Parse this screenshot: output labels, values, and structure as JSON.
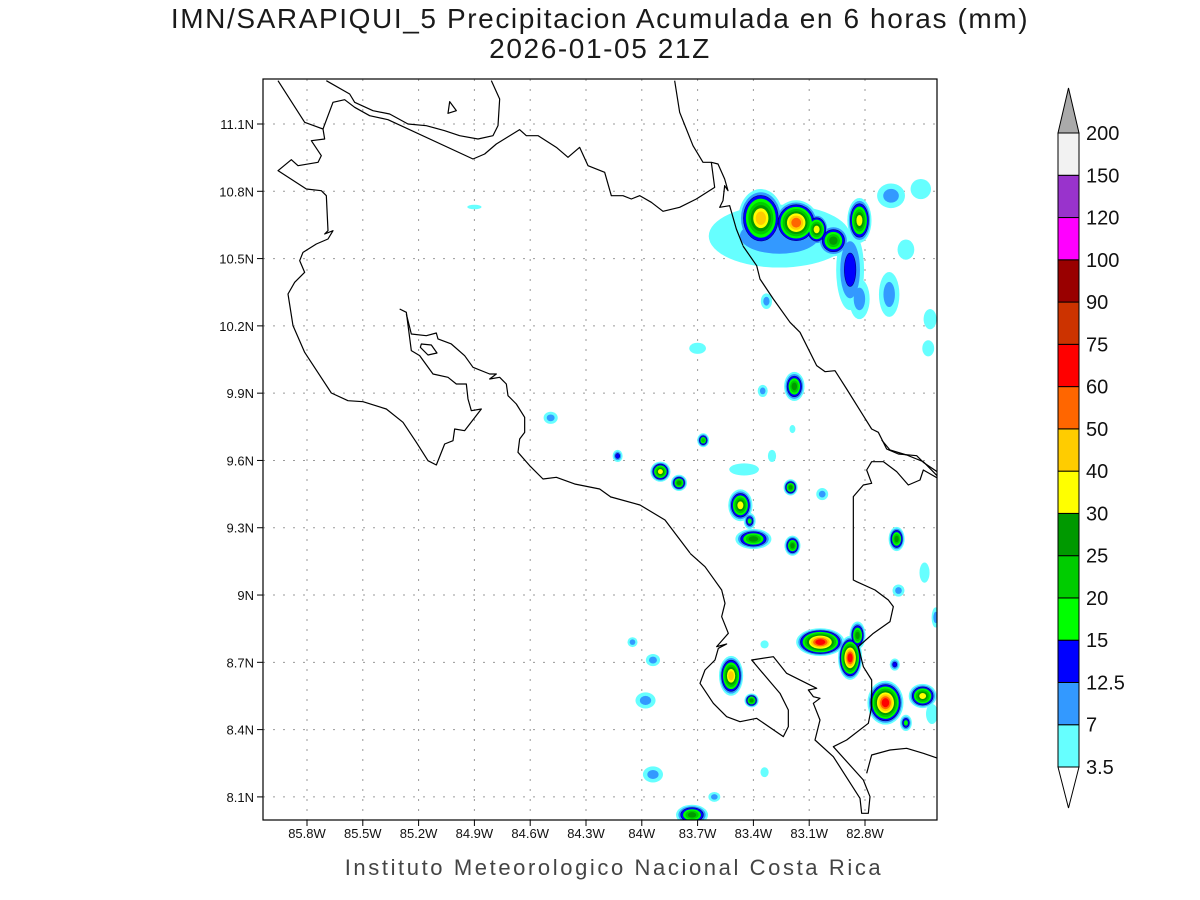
{
  "title": {
    "line1": "IMN/SARAPIQUI_5 Precipitacion Acumulada en 6 horas (mm)",
    "line2": "2026-01-05 21Z"
  },
  "footer": "Instituto Meteorologico Nacional Costa Rica",
  "map": {
    "lon_labels": [
      "85.8W",
      "85.5W",
      "85.2W",
      "84.9W",
      "84.6W",
      "84.3W",
      "84W",
      "83.7W",
      "83.4W",
      "83.1W",
      "82.8W"
    ],
    "lon_values": [
      85.8,
      85.5,
      85.2,
      84.9,
      84.6,
      84.3,
      84.0,
      83.7,
      83.4,
      83.1,
      82.8
    ],
    "lat_labels": [
      "11.1N",
      "10.8N",
      "10.5N",
      "10.2N",
      "9.9N",
      "9.6N",
      "9.3N",
      "9N",
      "8.7N",
      "8.4N",
      "8.1N"
    ],
    "lat_values": [
      11.1,
      10.8,
      10.5,
      10.2,
      9.9,
      9.6,
      9.3,
      9.0,
      8.7,
      8.4,
      8.1
    ],
    "lon_range_W": [
      86.04,
      82.41
    ],
    "lat_range_N": [
      8.0,
      11.3
    ]
  },
  "colorbar": {
    "units": "mm",
    "levels": [
      "3.5",
      "7",
      "12.5",
      "15",
      "20",
      "25",
      "30",
      "40",
      "50",
      "60",
      "75",
      "90",
      "100",
      "120",
      "150",
      "200"
    ],
    "colors": [
      "#66FFFF",
      "#3399FF",
      "#0000FF",
      "#00FF00",
      "#00CC00",
      "#009900",
      "#FFFF00",
      "#FFCC00",
      "#FF6600",
      "#FF0000",
      "#CC3300",
      "#990000",
      "#FF00FF",
      "#9933CC",
      "#F2F2F2"
    ],
    "over_color": "#AAAAAA",
    "under_color": "#FFFFFF"
  },
  "precip_cells": [
    {
      "lon": 83.26,
      "lat": 10.6,
      "peak_mm": 7,
      "ext": [
        0.38,
        0.14
      ]
    },
    {
      "lon": 82.88,
      "lat": 10.45,
      "peak_mm": 12.5,
      "ext": [
        0.075,
        0.18
      ]
    },
    {
      "lon": 82.83,
      "lat": 10.32,
      "peak_mm": 7,
      "ext": [
        0.055,
        0.09
      ]
    },
    {
      "lon": 82.67,
      "lat": 10.34,
      "peak_mm": 7,
      "ext": [
        0.055,
        0.1
      ]
    },
    {
      "lon": 82.66,
      "lat": 10.78,
      "peak_mm": 7,
      "ext": [
        0.075,
        0.055
      ]
    },
    {
      "lon": 82.58,
      "lat": 10.54,
      "peak_mm": 3.5,
      "ext": [
        0.045,
        0.045
      ]
    },
    {
      "lon": 82.5,
      "lat": 10.81,
      "peak_mm": 3.5,
      "ext": [
        0.055,
        0.045
      ]
    },
    {
      "lon": 82.45,
      "lat": 10.23,
      "peak_mm": 3.5,
      "ext": [
        0.035,
        0.045
      ]
    },
    {
      "lon": 82.46,
      "lat": 10.1,
      "peak_mm": 3.5,
      "ext": [
        0.032,
        0.036
      ]
    },
    {
      "lon": 83.36,
      "lat": 10.68,
      "peak_mm": 40,
      "ext": [
        0.12,
        0.13
      ]
    },
    {
      "lon": 83.17,
      "lat": 10.66,
      "peak_mm": 50,
      "ext": [
        0.12,
        0.1
      ]
    },
    {
      "lon": 83.06,
      "lat": 10.63,
      "peak_mm": 30,
      "ext": [
        0.065,
        0.07
      ]
    },
    {
      "lon": 82.97,
      "lat": 10.58,
      "peak_mm": 25,
      "ext": [
        0.085,
        0.07
      ]
    },
    {
      "lon": 82.83,
      "lat": 10.67,
      "peak_mm": 30,
      "ext": [
        0.065,
        0.1
      ]
    },
    {
      "lon": 83.33,
      "lat": 10.31,
      "peak_mm": 7,
      "ext": [
        0.03,
        0.035
      ]
    },
    {
      "lon": 83.7,
      "lat": 10.1,
      "peak_mm": 3.5,
      "ext": [
        0.045,
        0.025
      ]
    },
    {
      "lon": 84.9,
      "lat": 10.73,
      "peak_mm": 3.5,
      "ext": [
        0.038,
        0.01
      ]
    },
    {
      "lon": 83.18,
      "lat": 9.93,
      "peak_mm": 25,
      "ext": [
        0.055,
        0.065
      ]
    },
    {
      "lon": 83.35,
      "lat": 9.91,
      "peak_mm": 7,
      "ext": [
        0.027,
        0.027
      ]
    },
    {
      "lon": 83.19,
      "lat": 9.74,
      "peak_mm": 3.5,
      "ext": [
        0.016,
        0.018
      ]
    },
    {
      "lon": 83.67,
      "lat": 9.69,
      "peak_mm": 20,
      "ext": [
        0.032,
        0.031
      ]
    },
    {
      "lon": 84.49,
      "lat": 9.79,
      "peak_mm": 7,
      "ext": [
        0.038,
        0.027
      ]
    },
    {
      "lon": 84.13,
      "lat": 9.62,
      "peak_mm": 12.5,
      "ext": [
        0.027,
        0.027
      ]
    },
    {
      "lon": 83.9,
      "lat": 9.55,
      "peak_mm": 30,
      "ext": [
        0.054,
        0.045
      ]
    },
    {
      "lon": 83.8,
      "lat": 9.5,
      "peak_mm": 25,
      "ext": [
        0.043,
        0.036
      ]
    },
    {
      "lon": 83.45,
      "lat": 9.56,
      "peak_mm": 3.5,
      "ext": [
        0.08,
        0.027
      ]
    },
    {
      "lon": 83.47,
      "lat": 9.4,
      "peak_mm": 30,
      "ext": [
        0.065,
        0.071
      ]
    },
    {
      "lon": 83.42,
      "lat": 9.33,
      "peak_mm": 15,
      "ext": [
        0.032,
        0.036
      ]
    },
    {
      "lon": 83.4,
      "lat": 9.25,
      "peak_mm": 25,
      "ext": [
        0.097,
        0.045
      ]
    },
    {
      "lon": 83.19,
      "lat": 9.22,
      "peak_mm": 25,
      "ext": [
        0.043,
        0.045
      ]
    },
    {
      "lon": 83.2,
      "lat": 9.48,
      "peak_mm": 25,
      "ext": [
        0.038,
        0.036
      ]
    },
    {
      "lon": 83.03,
      "lat": 9.45,
      "peak_mm": 7,
      "ext": [
        0.032,
        0.027
      ]
    },
    {
      "lon": 83.3,
      "lat": 9.62,
      "peak_mm": 3.5,
      "ext": [
        0.022,
        0.027
      ]
    },
    {
      "lon": 82.63,
      "lat": 9.25,
      "peak_mm": 25,
      "ext": [
        0.043,
        0.054
      ]
    },
    {
      "lon": 82.62,
      "lat": 9.02,
      "peak_mm": 7,
      "ext": [
        0.032,
        0.027
      ]
    },
    {
      "lon": 82.48,
      "lat": 9.1,
      "peak_mm": 3.5,
      "ext": [
        0.027,
        0.045
      ]
    },
    {
      "lon": 82.42,
      "lat": 8.9,
      "peak_mm": 7,
      "ext": [
        0.022,
        0.045
      ]
    },
    {
      "lon": 83.04,
      "lat": 8.79,
      "peak_mm": 60,
      "ext": [
        0.13,
        0.062
      ]
    },
    {
      "lon": 82.88,
      "lat": 8.72,
      "peak_mm": 60,
      "ext": [
        0.065,
        0.098
      ]
    },
    {
      "lon": 82.84,
      "lat": 8.82,
      "peak_mm": 25,
      "ext": [
        0.043,
        0.062
      ]
    },
    {
      "lon": 82.69,
      "lat": 8.52,
      "peak_mm": 60,
      "ext": [
        0.097,
        0.098
      ]
    },
    {
      "lon": 82.49,
      "lat": 8.55,
      "peak_mm": 30,
      "ext": [
        0.075,
        0.054
      ]
    },
    {
      "lon": 82.64,
      "lat": 8.69,
      "peak_mm": 12.5,
      "ext": [
        0.027,
        0.027
      ]
    },
    {
      "lon": 82.58,
      "lat": 8.43,
      "peak_mm": 15,
      "ext": [
        0.032,
        0.036
      ]
    },
    {
      "lon": 82.44,
      "lat": 8.47,
      "peak_mm": 3.5,
      "ext": [
        0.032,
        0.045
      ]
    },
    {
      "lon": 83.52,
      "lat": 8.64,
      "peak_mm": 40,
      "ext": [
        0.065,
        0.089
      ]
    },
    {
      "lon": 83.41,
      "lat": 8.53,
      "peak_mm": 25,
      "ext": [
        0.038,
        0.031
      ]
    },
    {
      "lon": 83.34,
      "lat": 8.78,
      "peak_mm": 3.5,
      "ext": [
        0.022,
        0.018
      ]
    },
    {
      "lon": 84.05,
      "lat": 8.79,
      "peak_mm": 7,
      "ext": [
        0.027,
        0.022
      ]
    },
    {
      "lon": 83.94,
      "lat": 8.71,
      "peak_mm": 7,
      "ext": [
        0.038,
        0.027
      ]
    },
    {
      "lon": 83.98,
      "lat": 8.53,
      "peak_mm": 7,
      "ext": [
        0.054,
        0.036
      ]
    },
    {
      "lon": 83.94,
      "lat": 8.2,
      "peak_mm": 7,
      "ext": [
        0.054,
        0.036
      ]
    },
    {
      "lon": 83.73,
      "lat": 8.02,
      "peak_mm": 25,
      "ext": [
        0.086,
        0.045
      ]
    },
    {
      "lon": 83.61,
      "lat": 8.1,
      "peak_mm": 7,
      "ext": [
        0.032,
        0.022
      ]
    },
    {
      "lon": 83.34,
      "lat": 8.21,
      "peak_mm": 3.5,
      "ext": [
        0.022,
        0.022
      ]
    }
  ]
}
